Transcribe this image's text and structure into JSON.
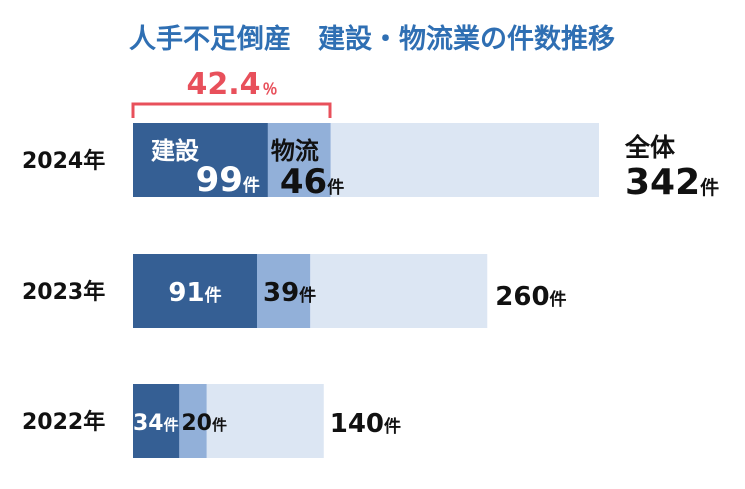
{
  "chart_data": {
    "type": "bar",
    "title": "人手不足倒産　建設・物流業の件数推移",
    "categories": [
      "2024年",
      "2023年",
      "2022年"
    ],
    "series": [
      {
        "name": "建設",
        "values": [
          99,
          91,
          34
        ]
      },
      {
        "name": "物流",
        "values": [
          46,
          39,
          20
        ]
      }
    ],
    "totals": [
      342,
      260,
      140
    ],
    "total_label": "全体",
    "unit": "件",
    "annotation": {
      "value": "42.4",
      "unit": "％"
    },
    "colors": {
      "construction": "#355f94",
      "logistics": "#92b0d9",
      "total": "#dce6f3",
      "title": "#2f6fb3",
      "annotation": "#e8505b"
    }
  }
}
